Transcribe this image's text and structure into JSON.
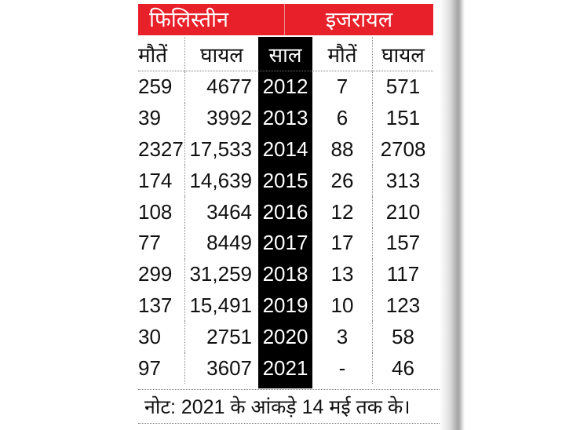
{
  "chart_data": {
    "type": "table",
    "group_headers": [
      "फिलिस्तीन",
      "इजरायल"
    ],
    "columns": [
      "मौतें",
      "घायल",
      "साल",
      "मौतें",
      "घायल"
    ],
    "rows": [
      [
        "259",
        "4677",
        "2012",
        "7",
        "571"
      ],
      [
        "39",
        "3992",
        "2013",
        "6",
        "151"
      ],
      [
        "2327",
        "17,533",
        "2014",
        "88",
        "2708"
      ],
      [
        "174",
        "14,639",
        "2015",
        "26",
        "313"
      ],
      [
        "108",
        "3464",
        "2016",
        "12",
        "210"
      ],
      [
        "77",
        "8449",
        "2017",
        "17",
        "157"
      ],
      [
        "299",
        "31,259",
        "2018",
        "13",
        "117"
      ],
      [
        "137",
        "15,491",
        "2019",
        "10",
        "123"
      ],
      [
        "30",
        "2751",
        "2020",
        "3",
        "58"
      ],
      [
        "97",
        "3607",
        "2021",
        "-",
        "46"
      ]
    ],
    "note": "नोट: 2021 के आंकड़े 14 मई तक के।"
  },
  "colors": {
    "header_bg": "#e8202a",
    "year_column_bg": "#000000"
  }
}
